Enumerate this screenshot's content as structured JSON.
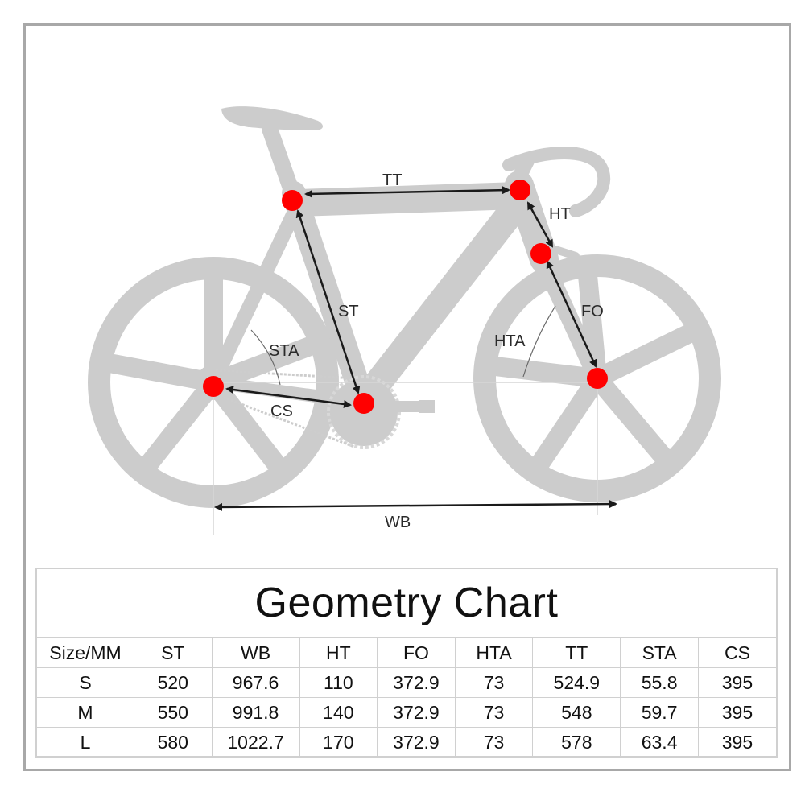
{
  "diagram": {
    "labels": {
      "tt": "TT",
      "ht": "HT",
      "st": "ST",
      "fo": "FO",
      "sta": "STA",
      "hta": "HTA",
      "cs": "CS",
      "wb": "WB"
    },
    "colors": {
      "frame": "#cccccc",
      "marker": "#ff0000",
      "arrow": "#1a1a1a"
    }
  },
  "geometry_chart": {
    "title": "Geometry Chart",
    "columns": [
      "Size/MM",
      "ST",
      "WB",
      "HT",
      "FO",
      "HTA",
      "TT",
      "STA",
      "CS"
    ],
    "rows": [
      [
        "S",
        "520",
        "967.6",
        "110",
        "372.9",
        "73",
        "524.9",
        "55.8",
        "395"
      ],
      [
        "M",
        "550",
        "991.8",
        "140",
        "372.9",
        "73",
        "548",
        "59.7",
        "395"
      ],
      [
        "L",
        "580",
        "1022.7",
        "170",
        "372.9",
        "73",
        "578",
        "63.4",
        "395"
      ]
    ]
  }
}
